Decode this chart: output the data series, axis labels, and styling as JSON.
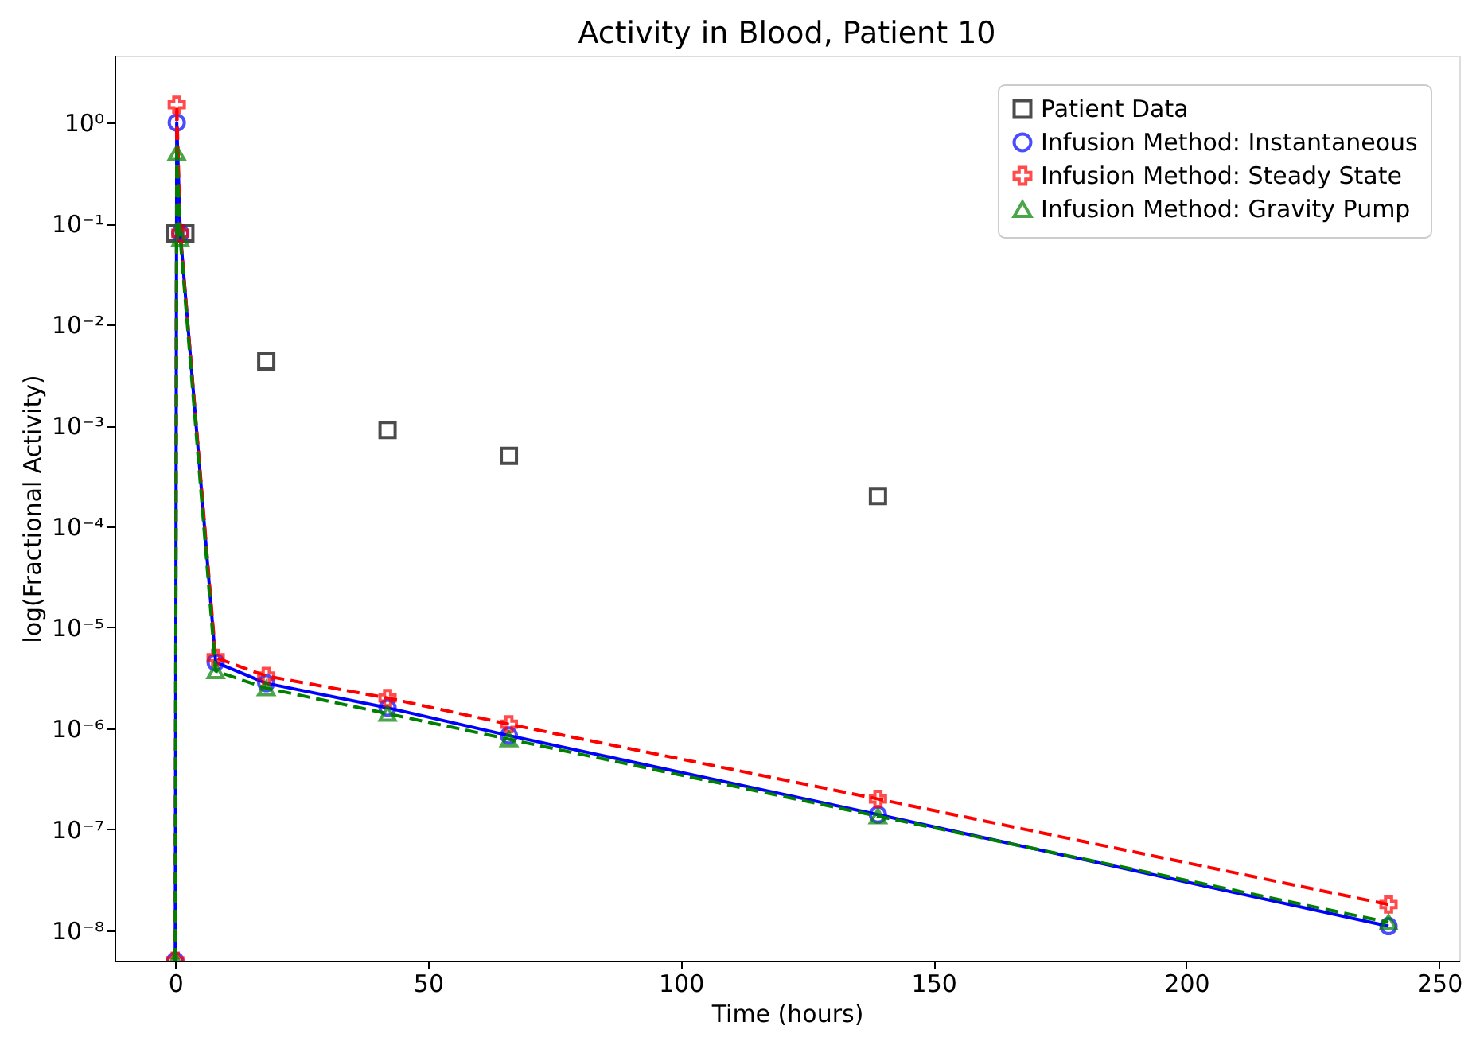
{
  "chart_data": {
    "type": "line",
    "title": "Activity in Blood, Patient 10",
    "xlabel": "Time (hours)",
    "ylabel": "log(Fractional Activity)",
    "log": "y",
    "grid": false,
    "legend": "top right",
    "xlim": [
      -12,
      254
    ],
    "xticks": [
      0,
      50,
      100,
      150,
      200,
      250
    ],
    "ylim": [
      5e-09,
      4.6
    ],
    "yticks": [
      {
        "value": 1e-08,
        "label": "10⁻⁸"
      },
      {
        "value": 1e-07,
        "label": "10⁻⁷"
      },
      {
        "value": 1e-06,
        "label": "10⁻⁶"
      },
      {
        "value": 1e-05,
        "label": "10⁻⁵"
      },
      {
        "value": 0.0001,
        "label": "10⁻⁴"
      },
      {
        "value": 0.001,
        "label": "10⁻³"
      },
      {
        "value": 0.01,
        "label": "10⁻²"
      },
      {
        "value": 0.1,
        "label": "10⁻¹"
      },
      {
        "value": 1,
        "label": "10⁰"
      }
    ],
    "series": [
      {
        "name": "Patient Data",
        "type": "scatter",
        "marker": "square",
        "color": "#000000",
        "x": [
          0,
          2,
          18,
          42,
          66,
          139
        ],
        "values": [
          0.08,
          0.08,
          0.0043,
          0.0009,
          0.0005,
          0.0002
        ]
      },
      {
        "name": "Infusion Method: Instantaneous",
        "marker": "circle",
        "line_style": "solid",
        "color": "#0000ff",
        "x": [
          0,
          0.3,
          1,
          8,
          18,
          42,
          66,
          139,
          240
        ],
        "values": [
          5e-09,
          1.0,
          0.08,
          4.5e-06,
          2.8e-06,
          1.6e-06,
          8.5e-07,
          1.4e-07,
          1.1e-08
        ]
      },
      {
        "name": "Infusion Method: Steady State",
        "marker": "cross",
        "line_style": "dashed",
        "color": "#ff0000",
        "x": [
          0,
          0.3,
          1,
          8,
          18,
          42,
          66,
          139,
          240
        ],
        "values": [
          5e-09,
          1.5,
          0.08,
          5e-06,
          3.3e-06,
          2e-06,
          1.1e-06,
          2e-07,
          1.8e-08
        ]
      },
      {
        "name": "Infusion Method: Gravity Pump",
        "marker": "triangle",
        "line_style": "dashed",
        "color": "#008000",
        "x": [
          0,
          0.3,
          1,
          8,
          18,
          42,
          66,
          139,
          240
        ],
        "values": [
          5e-09,
          0.5,
          0.07,
          3.7e-06,
          2.5e-06,
          1.4e-06,
          7.8e-07,
          1.35e-07,
          1.2e-08
        ]
      }
    ]
  }
}
